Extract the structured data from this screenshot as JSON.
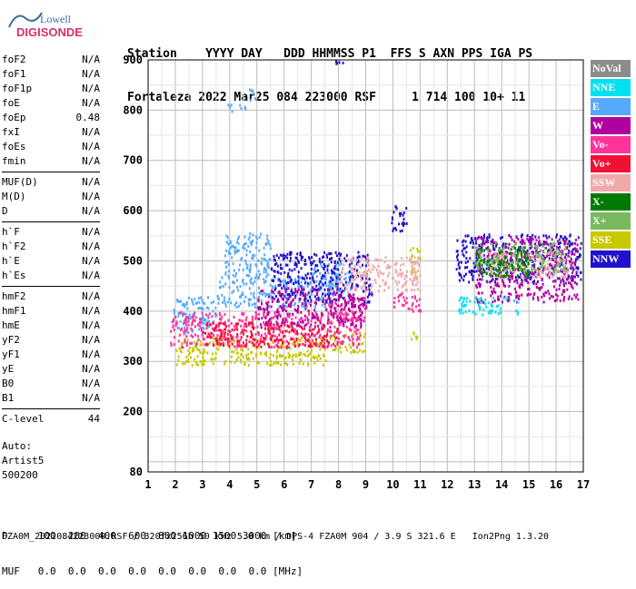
{
  "logo": {
    "brand": "Lowell",
    "product": "DIGISONDE"
  },
  "header": {
    "line1": "Station    YYYY DAY   DDD HHMMSS P1  FFS S AXN PPS IGA PS",
    "line2": "Fortaleza 2022 Mar25 084 223000 RSF     1 714 100 10+ 11"
  },
  "params": {
    "group1": [
      {
        "name": "foF2",
        "value": "N/A"
      },
      {
        "name": "foF1",
        "value": "N/A"
      },
      {
        "name": "foF1p",
        "value": "N/A"
      },
      {
        "name": "foE",
        "value": "N/A"
      },
      {
        "name": "foEp",
        "value": "0.48"
      },
      {
        "name": "fxI",
        "value": "N/A"
      },
      {
        "name": "foEs",
        "value": "N/A"
      },
      {
        "name": "fmin",
        "value": "N/A"
      }
    ],
    "group2": [
      {
        "name": "MUF(D)",
        "value": "N/A"
      },
      {
        "name": "M(D)",
        "value": "N/A"
      },
      {
        "name": "D",
        "value": "N/A"
      }
    ],
    "group3": [
      {
        "name": "h`F",
        "value": "N/A"
      },
      {
        "name": "h`F2",
        "value": "N/A"
      },
      {
        "name": "h`E",
        "value": "N/A"
      },
      {
        "name": "h`Es",
        "value": "N/A"
      }
    ],
    "group4": [
      {
        "name": "hmF2",
        "value": "N/A"
      },
      {
        "name": "hmF1",
        "value": "N/A"
      },
      {
        "name": "hmE",
        "value": "N/A"
      },
      {
        "name": "yF2",
        "value": "N/A"
      },
      {
        "name": "yF1",
        "value": "N/A"
      },
      {
        "name": "yE",
        "value": "N/A"
      },
      {
        "name": "B0",
        "value": "N/A"
      },
      {
        "name": "B1",
        "value": "N/A"
      }
    ],
    "group5": [
      {
        "name": "C-level",
        "value": "44"
      }
    ]
  },
  "auto": {
    "label": "Auto:",
    "program": "Artist5",
    "version": "500200"
  },
  "legend": [
    {
      "label": "NoVal",
      "color": "#8c8c8c"
    },
    {
      "label": "NNE",
      "color": "#00e0f0"
    },
    {
      "label": "E",
      "color": "#55aaff"
    },
    {
      "label": "W",
      "color": "#b000a0"
    },
    {
      "label": "Vo-",
      "color": "#ff3399"
    },
    {
      "label": "Vo+",
      "color": "#ee1133"
    },
    {
      "label": "SSW",
      "color": "#f0a8a8"
    },
    {
      "label": "X-",
      "color": "#007a00"
    },
    {
      "label": "X+",
      "color": "#7ab860"
    },
    {
      "label": "SSE",
      "color": "#c8c800"
    },
    {
      "label": "NNW",
      "color": "#2211cc"
    }
  ],
  "bottom": {
    "d_row": "D     100  200  400  600  800 1000 1500 3000 [km]",
    "muf_row": "MUF   0.0  0.0  0.0  0.0  0.0  0.0  0.0  0.0 [MHz]"
  },
  "footer": "FZA0M_2022084223000.RSF / 320fx256h 50 kHz 5.0 km / DPS-4 FZA0M 904 / 3.9 S 321.6 E   Ion2Png 1.3.20",
  "chart_data": {
    "type": "scatter",
    "xlim": [
      1,
      17
    ],
    "ylim": [
      80,
      900
    ],
    "x_ticks": [
      1,
      2,
      3,
      4,
      5,
      6,
      7,
      8,
      9,
      10,
      11,
      12,
      13,
      14,
      15,
      16,
      17
    ],
    "y_ticks": [
      80,
      200,
      300,
      400,
      500,
      600,
      700,
      800,
      900
    ],
    "grid": true,
    "legend_position": "right",
    "series": [
      {
        "name": "E",
        "color": "#55aaff",
        "clusters": [
          {
            "x": [
              1.9,
              3.5
            ],
            "y": [
              360,
              430
            ]
          },
          {
            "x": [
              3.5,
              7.8
            ],
            "y": [
              410,
              470
            ]
          },
          {
            "x": [
              3.8,
              5.5
            ],
            "y": [
              470,
              560
            ]
          },
          {
            "x": [
              7.0,
              8.5
            ],
            "y": [
              440,
              500
            ]
          },
          {
            "x": [
              3.9,
              4.6
            ],
            "y": [
              800,
              815
            ]
          },
          {
            "x": [
              4.7,
              5.0
            ],
            "y": [
              820,
              845
            ]
          }
        ]
      },
      {
        "name": "SSE",
        "color": "#c8c800",
        "clusters": [
          {
            "x": [
              2.0,
              7.5
            ],
            "y": [
              295,
              350
            ]
          },
          {
            "x": [
              7.6,
              9.0
            ],
            "y": [
              320,
              360
            ]
          },
          {
            "x": [
              10.6,
              10.9
            ],
            "y": [
              345,
              360
            ]
          },
          {
            "x": [
              10.6,
              11.0
            ],
            "y": [
              480,
              530
            ]
          }
        ]
      },
      {
        "name": "Vo-",
        "color": "#ff3399",
        "clusters": [
          {
            "x": [
              1.8,
              8.8
            ],
            "y": [
              330,
              400
            ]
          },
          {
            "x": [
              7.5,
              9.0
            ],
            "y": [
              380,
              430
            ]
          },
          {
            "x": [
              10.0,
              11.0
            ],
            "y": [
              400,
              440
            ]
          }
        ]
      },
      {
        "name": "NNW",
        "color": "#2211cc",
        "clusters": [
          {
            "x": [
              5.5,
              9.2
            ],
            "y": [
              420,
              520
            ]
          },
          {
            "x": [
              9.9,
              10.5
            ],
            "y": [
              560,
              615
            ]
          },
          {
            "x": [
              12.3,
              16.9
            ],
            "y": [
              460,
              555
            ]
          },
          {
            "x": [
              7.8,
              8.2
            ],
            "y": [
              895,
              900
            ]
          }
        ]
      },
      {
        "name": "W",
        "color": "#b000a0",
        "clusters": [
          {
            "x": [
              5.0,
              9.0
            ],
            "y": [
              370,
              450
            ]
          },
          {
            "x": [
              13.0,
              16.8
            ],
            "y": [
              420,
              550
            ]
          }
        ]
      },
      {
        "name": "NNE",
        "color": "#00e0f0",
        "clusters": [
          {
            "x": [
              12.4,
              14.6
            ],
            "y": [
              395,
              430
            ]
          }
        ]
      },
      {
        "name": "SSW",
        "color": "#f0a8a8",
        "clusters": [
          {
            "x": [
              8.0,
              11.0
            ],
            "y": [
              440,
              510
            ]
          },
          {
            "x": [
              13.5,
              16.5
            ],
            "y": [
              470,
              520
            ]
          }
        ]
      },
      {
        "name": "Vo+",
        "color": "#ee1133",
        "clusters": [
          {
            "x": [
              3.0,
              8.0
            ],
            "y": [
              330,
              380
            ]
          }
        ]
      },
      {
        "name": "X+",
        "color": "#7ab860",
        "clusters": [
          {
            "x": [
              13.0,
              16.5
            ],
            "y": [
              480,
              540
            ]
          }
        ]
      },
      {
        "name": "X-",
        "color": "#007a00",
        "clusters": [
          {
            "x": [
              13.0,
              15.0
            ],
            "y": [
              470,
              530
            ]
          }
        ]
      }
    ]
  }
}
